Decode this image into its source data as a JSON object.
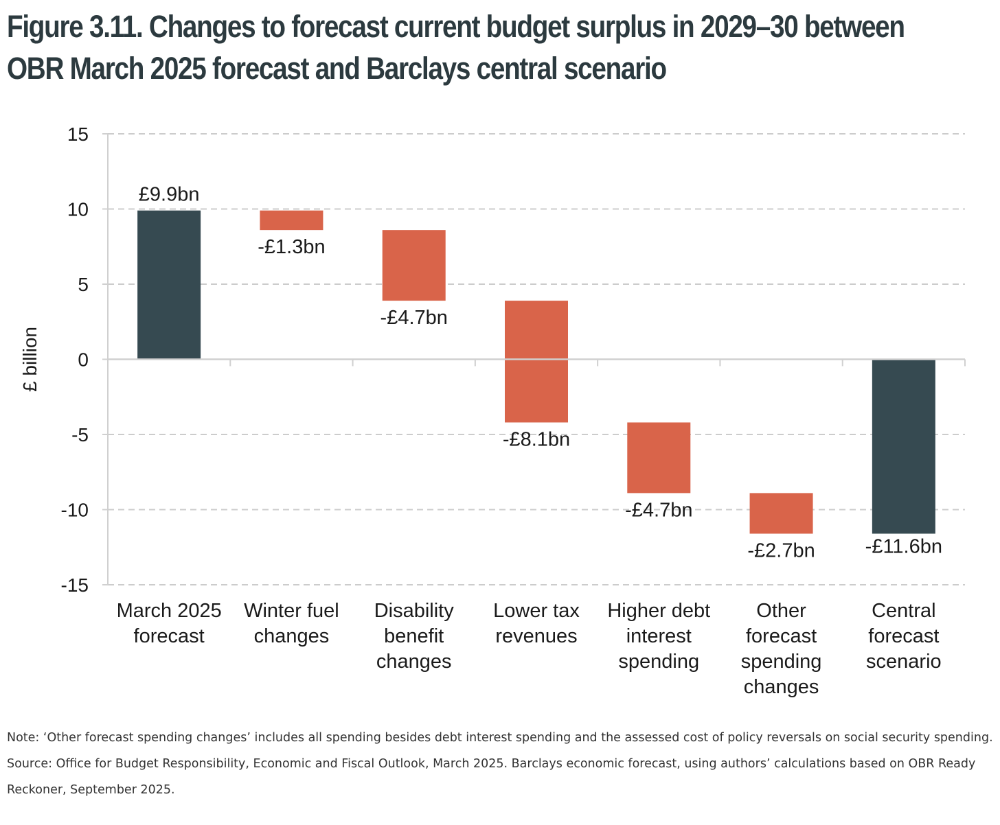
{
  "title_lines": [
    "Figure 3.11. Changes to forecast current budget surplus in 2029–30 between",
    "OBR March 2025 forecast and Barclays central scenario"
  ],
  "notes": {
    "note": "Note: ‘Other forecast spending changes’ includes all spending besides debt interest spending and the assessed cost of policy reversals on social security spending.",
    "source": "Source: Office for Budget Responsibility, Economic and Fiscal Outlook, March 2025. Barclays economic forecast, using authors’ calculations based on OBR Ready Reckoner, September 2025."
  },
  "colors": {
    "total": "#364a51",
    "change": "#d9644a",
    "grid": "#cccccc",
    "axis": "#d0d0d0"
  },
  "chart_data": {
    "type": "bar",
    "subtype": "waterfall",
    "title": "Figure 3.11. Changes to forecast current budget surplus in 2029–30 between OBR March 2025 forecast and Barclays central scenario",
    "ylabel": "£ billion",
    "xlabel": "",
    "ylim": [
      -15,
      15
    ],
    "yticks": [
      15,
      10,
      5,
      0,
      -5,
      -10,
      -15
    ],
    "grid": true,
    "categories": [
      [
        "March 2025",
        "forecast"
      ],
      [
        "Winter fuel",
        "changes"
      ],
      [
        "Disability",
        "benefit",
        "changes"
      ],
      [
        "Lower tax",
        "revenues"
      ],
      [
        "Higher debt",
        "interest",
        "spending"
      ],
      [
        "Other",
        "forecast",
        "spending",
        "changes"
      ],
      [
        "Central",
        "forecast",
        "scenario"
      ]
    ],
    "bars": [
      {
        "kind": "total",
        "start": 0,
        "end": 9.9,
        "value": 9.9,
        "label": "£9.9bn"
      },
      {
        "kind": "change",
        "start": 9.9,
        "end": 8.6,
        "value": -1.3,
        "label": "-£1.3bn"
      },
      {
        "kind": "change",
        "start": 8.6,
        "end": 3.9,
        "value": -4.7,
        "label": "-£4.7bn"
      },
      {
        "kind": "change",
        "start": 3.9,
        "end": -4.2,
        "value": -8.1,
        "label": "-£8.1bn"
      },
      {
        "kind": "change",
        "start": -4.2,
        "end": -8.9,
        "value": -4.7,
        "label": "-£4.7bn"
      },
      {
        "kind": "change",
        "start": -8.9,
        "end": -11.6,
        "value": -2.7,
        "label": "-£2.7bn"
      },
      {
        "kind": "total",
        "start": 0,
        "end": -11.6,
        "value": -11.6,
        "label": "-£11.6bn"
      }
    ]
  }
}
